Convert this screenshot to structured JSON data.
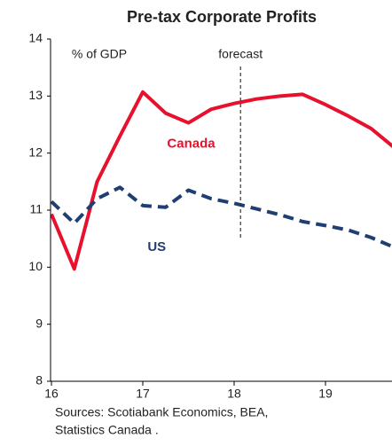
{
  "chart_data": {
    "type": "line",
    "title": "Pre-tax Corporate Profits",
    "y_label": "% of GDP",
    "source": [
      "Sources: Scotiabank Economics, BEA,",
      "Statistics Canada ."
    ],
    "forecast": {
      "label": "forecast",
      "x": 18.07
    },
    "x": [
      16,
      16.25,
      16.5,
      16.75,
      17,
      17.25,
      17.5,
      17.75,
      18,
      18.25,
      18.5,
      18.75,
      19,
      19.25,
      19.5,
      19.75
    ],
    "series": [
      {
        "name": "Canada",
        "color": "#e8112d",
        "dashed": false,
        "values": [
          10.93,
          9.97,
          11.5,
          12.3,
          13.07,
          12.7,
          12.53,
          12.77,
          12.87,
          12.95,
          13.0,
          13.03,
          12.85,
          12.65,
          12.43,
          12.1
        ]
      },
      {
        "name": "US",
        "color": "#1f3f72",
        "dashed": true,
        "values": [
          11.15,
          10.77,
          11.2,
          11.4,
          11.08,
          11.05,
          11.35,
          11.2,
          11.12,
          11.02,
          10.92,
          10.8,
          10.73,
          10.65,
          10.52,
          10.35
        ]
      }
    ],
    "xlim": [
      16,
      19.75
    ],
    "xticks": [
      16,
      17,
      18,
      19
    ],
    "ylim": [
      8,
      14
    ],
    "yticks": [
      8,
      9,
      10,
      11,
      12,
      13,
      14
    ]
  }
}
